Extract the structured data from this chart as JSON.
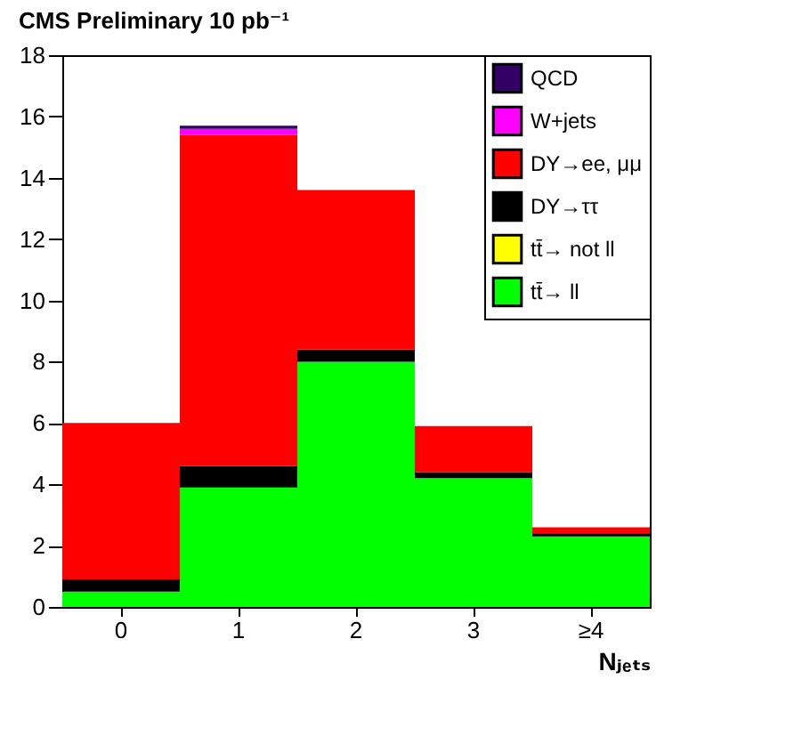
{
  "chart_data": {
    "type": "bar",
    "stacked": true,
    "title": "CMS Preliminary  10 pb⁻¹",
    "xlabel": "Nⱼₑₜₛ",
    "categories": [
      "0",
      "1",
      "2",
      "3",
      "≥4"
    ],
    "series": [
      {
        "name": "tt̄→ ll",
        "color": "#00ff00",
        "values": [
          0.5,
          3.9,
          8.0,
          4.2,
          2.3
        ]
      },
      {
        "name": "tt̄→ not ll",
        "color": "#ffff00",
        "values": [
          0,
          0,
          0,
          0,
          0
        ]
      },
      {
        "name": "DY→ττ",
        "color": "#000000",
        "values": [
          0.4,
          0.7,
          0.4,
          0.2,
          0.1
        ]
      },
      {
        "name": "DY→ee, μμ",
        "color": "#ff0000",
        "values": [
          5.1,
          10.8,
          5.2,
          1.5,
          0.2
        ]
      },
      {
        "name": "W+jets",
        "color": "#ff00ff",
        "values": [
          0,
          0.2,
          0,
          0,
          0
        ]
      },
      {
        "name": "QCD",
        "color": "#330066",
        "values": [
          0,
          0.1,
          0,
          0,
          0
        ]
      }
    ],
    "ylim": [
      0,
      18
    ],
    "yticks": [
      0,
      2,
      4,
      6,
      8,
      10,
      12,
      14,
      16,
      18
    ],
    "grid": false,
    "legend": "top right"
  }
}
